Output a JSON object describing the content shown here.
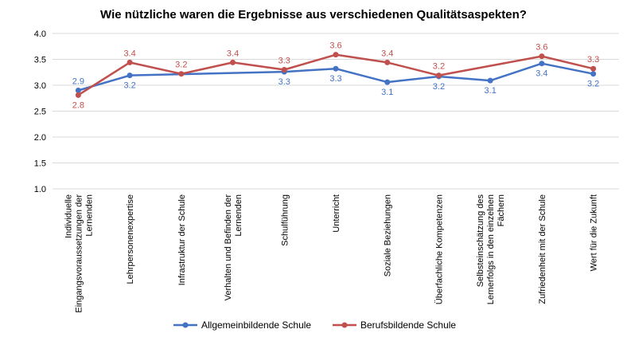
{
  "chart_data": {
    "type": "line",
    "title": "Wie nützliche waren die Ergebnisse aus verschiedenen Qualitätsaspekten?",
    "xlabel": "",
    "ylabel": "",
    "ylim": [
      1.0,
      4.0
    ],
    "yticks": [
      "1.0",
      "1.5",
      "2.0",
      "2.5",
      "3.0",
      "3.5",
      "4.0"
    ],
    "grid": true,
    "legend_position": "bottom",
    "categories": [
      [
        "Individuelle",
        "Eingangsvoraussetzungen der",
        "Lernenden"
      ],
      [
        "Lehrpersonenexpertise"
      ],
      [
        "Infrastruktur der Schule"
      ],
      [
        "Verhalten und Befinden der",
        "Lernenden"
      ],
      [
        "Schulführung"
      ],
      [
        "Unterricht"
      ],
      [
        "Soziale Beziehungen"
      ],
      [
        "Überfachliche Kompetenzen"
      ],
      [
        "Selbsteinschätzung des",
        "Lernerfolgs in den einzelnen",
        "Fächern"
      ],
      [
        "Zufriedenheit mit der Schule"
      ],
      [
        "Wert für die Zukunft"
      ]
    ],
    "series": [
      {
        "name": "Allgemeinbildende Schule",
        "color": "#4472C4",
        "values": [
          2.9,
          3.19,
          null,
          null,
          3.26,
          3.32,
          3.06,
          3.17,
          3.09,
          3.42,
          3.22
        ],
        "labels": [
          "2.9",
          "3.2",
          "",
          "",
          "3.3",
          "3.3",
          "3.1",
          "3.2",
          "3.1",
          "3.4",
          "3.2"
        ]
      },
      {
        "name": "Berufsbildende Schule",
        "color": "#C0504D",
        "values": [
          2.81,
          3.44,
          3.22,
          3.44,
          3.3,
          3.59,
          3.44,
          3.19,
          null,
          3.56,
          3.32
        ],
        "labels": [
          "2.8",
          "3.4",
          "3.2",
          "3.4",
          "3.3",
          "3.6",
          "3.4",
          "3.2",
          "",
          "3.6",
          "3.3"
        ]
      }
    ]
  }
}
